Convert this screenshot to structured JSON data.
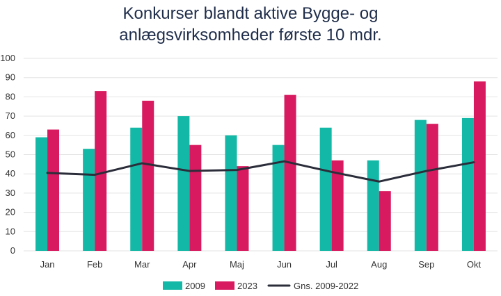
{
  "title_line1": "Konkurser blandt aktive Bygge- og",
  "title_line2": "anlægsvirksomheder første 10 mdr.",
  "chart_data": {
    "type": "bar",
    "title": "Konkurser blandt aktive Bygge- og anlægsvirksomheder første 10 mdr.",
    "categories": [
      "Jan",
      "Feb",
      "Mar",
      "Apr",
      "Maj",
      "Jun",
      "Jul",
      "Aug",
      "Sep",
      "Okt"
    ],
    "series": [
      {
        "name": "2009",
        "kind": "bar",
        "color": "#14b8a6",
        "values": [
          59,
          53,
          64,
          70,
          60,
          55,
          64,
          47,
          68,
          69
        ]
      },
      {
        "name": "2023",
        "kind": "bar",
        "color": "#d81b60",
        "values": [
          63,
          83,
          78,
          55,
          44,
          81,
          47,
          31,
          66,
          88
        ]
      },
      {
        "name": "Gns. 2009-2022",
        "kind": "line",
        "color": "#2b2d3a",
        "values": [
          40.5,
          39.5,
          45.5,
          41.5,
          42,
          46.5,
          41,
          36,
          41.5,
          46
        ]
      }
    ],
    "ylim": [
      0,
      100
    ],
    "yticks": [
      0,
      10,
      20,
      30,
      40,
      50,
      60,
      70,
      80,
      90,
      100
    ],
    "grid": true,
    "legend": "bottom"
  }
}
